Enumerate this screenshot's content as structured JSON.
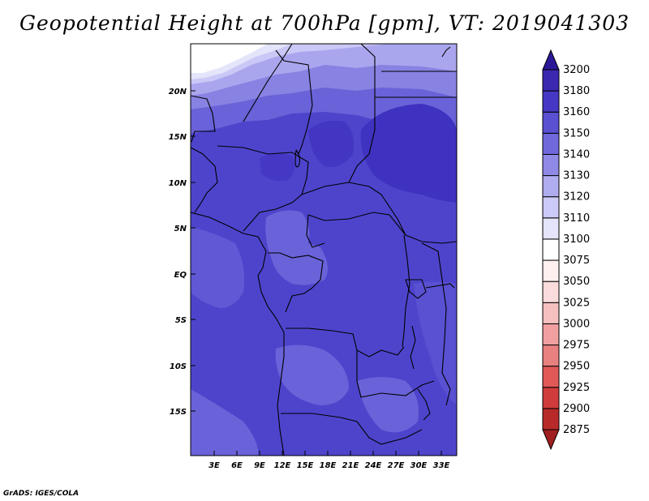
{
  "title": "Geopotential Height at 700hPa [gpm], VT: 2019041303",
  "credit": "GrADS: IGES/COLA",
  "lat_labels": [
    "20N",
    "15N",
    "10N",
    "5N",
    "EQ",
    "5S",
    "10S",
    "15S"
  ],
  "lon_labels": [
    "3E",
    "6E",
    "9E",
    "12E",
    "15E",
    "18E",
    "21E",
    "24E",
    "27E",
    "30E",
    "33E"
  ],
  "colorbar": {
    "levels": [
      "2875",
      "2900",
      "2925",
      "2950",
      "2975",
      "3000",
      "3025",
      "3050",
      "3075",
      "3100",
      "3110",
      "3120",
      "3130",
      "3140",
      "3150",
      "3160",
      "3180",
      "3200"
    ],
    "colors": [
      "#a01f1f",
      "#b82a2a",
      "#d03c3c",
      "#e05858",
      "#e88080",
      "#f0a0a0",
      "#f6c0c0",
      "#fadcdc",
      "#fff0f0",
      "#ffffff",
      "#e4e4fa",
      "#cccaf6",
      "#b0acf0",
      "#8f8ae6",
      "#7069dc",
      "#5a50d2",
      "#4638c4",
      "#3a28b0",
      "#2a1898"
    ]
  }
}
